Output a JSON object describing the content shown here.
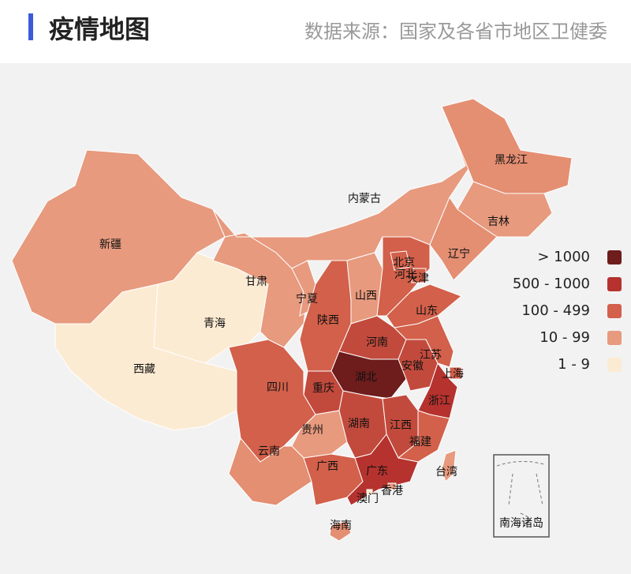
{
  "header": {
    "title": "疫情地图",
    "source": "数据来源：国家及各省市地区卫健委"
  },
  "legend": [
    {
      "label": "> 1000",
      "color": "#6e1c1c"
    },
    {
      "label": "500 - 1000",
      "color": "#b5322e"
    },
    {
      "label": "100 - 499",
      "color": "#d2604a"
    },
    {
      "label": "10 - 99",
      "color": "#e79a7e"
    },
    {
      "label": "1 - 9",
      "color": "#fcebd3"
    }
  ],
  "regions": [
    {
      "name": "新疆",
      "color": "#e79a7e"
    },
    {
      "name": "西藏",
      "color": "#fcebd3"
    },
    {
      "name": "青海",
      "color": "#fcebd3"
    },
    {
      "name": "甘肃",
      "color": "#e79a7e"
    },
    {
      "name": "内蒙古",
      "color": "#e79a7e"
    },
    {
      "name": "黑龙江",
      "color": "#e48e72"
    },
    {
      "name": "吉林",
      "color": "#e79a7e"
    },
    {
      "name": "辽宁",
      "color": "#e48e72"
    },
    {
      "name": "宁夏",
      "color": "#e79a7e"
    },
    {
      "name": "陕西",
      "color": "#d2604a"
    },
    {
      "name": "山西",
      "color": "#e79a7e"
    },
    {
      "name": "河北",
      "color": "#d2604a"
    },
    {
      "name": "北京",
      "color": "#d2604a"
    },
    {
      "name": "天津",
      "color": "#d2604a"
    },
    {
      "name": "山东",
      "color": "#d2604a"
    },
    {
      "name": "河南",
      "color": "#c24a3c"
    },
    {
      "name": "湖北",
      "color": "#6e1c1c"
    },
    {
      "name": "重庆",
      "color": "#c24a3c"
    },
    {
      "name": "四川",
      "color": "#d2604a"
    },
    {
      "name": "贵州",
      "color": "#e79a7e"
    },
    {
      "name": "云南",
      "color": "#e48e72"
    },
    {
      "name": "广西",
      "color": "#d2604a"
    },
    {
      "name": "湖南",
      "color": "#c24a3c"
    },
    {
      "name": "江西",
      "color": "#c24a3c"
    },
    {
      "name": "安徽",
      "color": "#c24a3c"
    },
    {
      "name": "江苏",
      "color": "#d2604a"
    },
    {
      "name": "上海",
      "color": "#d2604a"
    },
    {
      "name": "浙江",
      "color": "#b5322e"
    },
    {
      "name": "福建",
      "color": "#d2604a"
    },
    {
      "name": "广东",
      "color": "#b5322e"
    },
    {
      "name": "海南",
      "color": "#e48e72"
    },
    {
      "name": "台湾",
      "color": "#e79a7e"
    },
    {
      "name": "香港",
      "color": "#e79a7e"
    },
    {
      "name": "澳门",
      "color": "#fcebd3"
    }
  ],
  "inset": {
    "label": "南海诸岛"
  }
}
